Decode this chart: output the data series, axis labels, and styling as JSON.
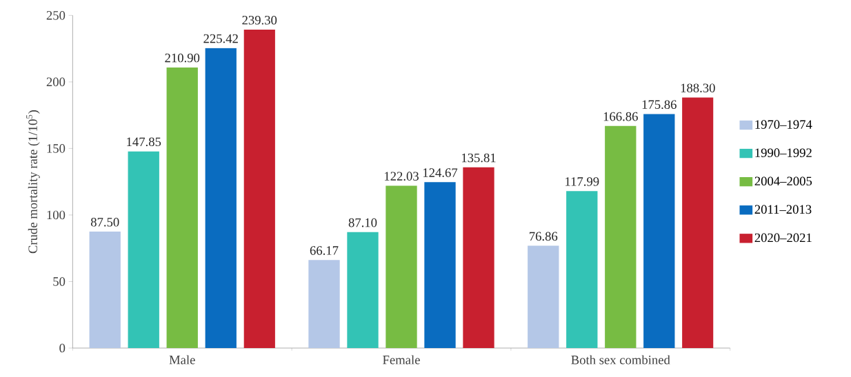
{
  "chart_data": {
    "type": "bar",
    "ylabel": "Crude mortality rate (1/10$^{5}$)",
    "categories": [
      "Male",
      "Female",
      "Both sex combined"
    ],
    "series": [
      {
        "name": "1970–1974",
        "color": "#b4c7e7",
        "values": [
          87.5,
          66.17,
          76.86
        ],
        "value_labels": [
          "87.50",
          "66.17",
          "76.86"
        ]
      },
      {
        "name": "1990–1992",
        "color": "#33c3b5",
        "values": [
          147.85,
          87.1,
          117.99
        ],
        "value_labels": [
          "147.85",
          "87.10",
          "117.99"
        ]
      },
      {
        "name": "2004–2005",
        "color": "#77bc43",
        "values": [
          210.9,
          122.03,
          166.86
        ],
        "value_labels": [
          "210.90",
          "122.03",
          "166.86"
        ]
      },
      {
        "name": "2011–2013",
        "color": "#0a6cc0",
        "values": [
          225.42,
          124.67,
          175.86
        ],
        "value_labels": [
          "225.42",
          "124.67",
          "175.86"
        ]
      },
      {
        "name": "2020–2021",
        "color": "#c8202f",
        "values": [
          239.3,
          135.81,
          188.3
        ],
        "value_labels": [
          "239.30",
          "135.81",
          "188.30"
        ]
      }
    ],
    "ylim": [
      0,
      250
    ],
    "yticks": [
      0,
      50,
      100,
      150,
      200,
      250
    ],
    "grid": false,
    "legend": "right"
  }
}
